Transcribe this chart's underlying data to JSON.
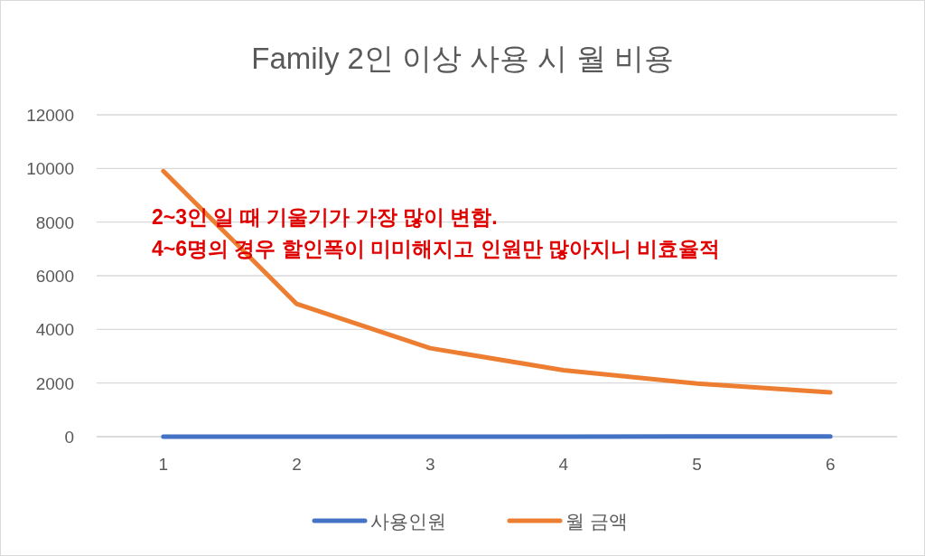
{
  "chart_data": {
    "type": "line",
    "title": "Family 2인 이상 사용 시 월 비용",
    "categories": [
      "1",
      "2",
      "3",
      "4",
      "5",
      "6"
    ],
    "series": [
      {
        "name": "사용인원",
        "color": "#4472c4",
        "values": [
          1,
          2,
          3,
          4,
          5,
          6
        ]
      },
      {
        "name": "월 금액",
        "color": "#ed7d31",
        "values": [
          9900,
          4950,
          3300,
          2475,
          1980,
          1650
        ]
      }
    ],
    "ylim": [
      0,
      12000
    ],
    "yticks": [
      0,
      2000,
      4000,
      6000,
      8000,
      10000,
      12000
    ],
    "grid": "y",
    "legend": "bottom",
    "marker": "none",
    "line_style": "solid",
    "annotations": [
      "2~3인 일 때 기울기가 가장 많이 변함.",
      "4~6명의 경우 할인폭이 미미해지고 인원만 많아지니 비효율적"
    ]
  }
}
